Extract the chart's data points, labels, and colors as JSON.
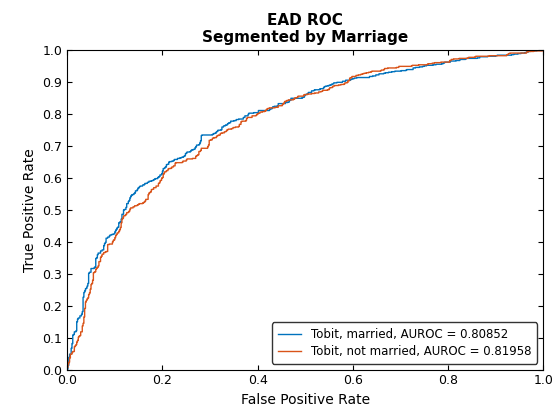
{
  "title_line1": "EAD ROC",
  "title_line2": "Segmented by Marriage",
  "xlabel": "False Positive Rate",
  "ylabel": "True Positive Rate",
  "xlim": [
    0,
    1
  ],
  "ylim": [
    0,
    1
  ],
  "xticks": [
    0,
    0.2,
    0.4,
    0.6,
    0.8,
    1.0
  ],
  "yticks": [
    0,
    0.1,
    0.2,
    0.3,
    0.4,
    0.5,
    0.6,
    0.7,
    0.8,
    0.9,
    1.0
  ],
  "line1_label": "Tobit, married, AUROC = 0.80852",
  "line2_label": "Tobit, not married, AUROC = 0.81958",
  "line1_color": "#0072BD",
  "line2_color": "#D95319",
  "line1_auroc": 0.80852,
  "line2_auroc": 0.81958,
  "background_color": "#ffffff",
  "legend_loc": "lower right",
  "title_fontsize": 11,
  "label_fontsize": 10,
  "tick_fontsize": 9,
  "legend_fontsize": 8.5,
  "line_width": 1.0,
  "figwidth": 5.6,
  "figheight": 4.2,
  "dpi": 100
}
